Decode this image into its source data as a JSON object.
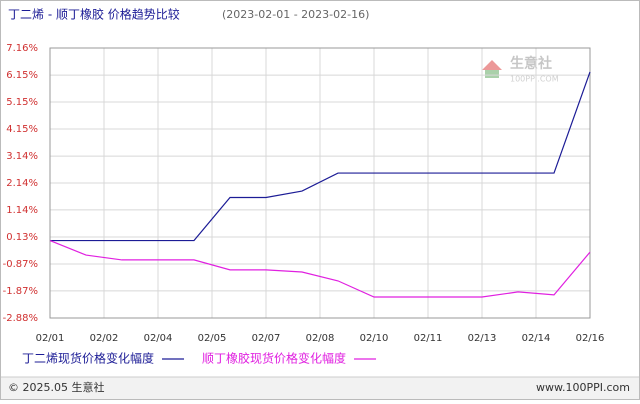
{
  "chart_data": {
    "type": "line",
    "title": "丁二烯 - 顺丁橡胶 价格趋势比较",
    "subtitle": "(2023-02-01 - 2023-02-16)",
    "x_labels": [
      "02/01",
      "02/02",
      "02/04",
      "02/05",
      "02/07",
      "02/08",
      "02/10",
      "02/11",
      "02/13",
      "02/14",
      "02/16"
    ],
    "series": [
      {
        "name": "丁二烯现货价格变化幅度",
        "color": "#1c1c96",
        "values": [
          0,
          0,
          0,
          0,
          0,
          1.6,
          1.6,
          1.84,
          2.51,
          2.51,
          2.51,
          2.51,
          2.51,
          2.51,
          2.51,
          6.27
        ]
      },
      {
        "name": "顺丁橡胶现货价格变化幅度",
        "color": "#e020e0",
        "values": [
          0,
          -0.54,
          -0.72,
          -0.72,
          -0.72,
          -1.09,
          -1.09,
          -1.17,
          -1.5,
          -2.1,
          -2.1,
          -2.1,
          -2.1,
          -1.91,
          -2.02,
          -0.43
        ]
      }
    ],
    "ylim": [
      -2.88,
      7.16
    ],
    "yticks": [
      {
        "value": 7.16,
        "label": "7.16%"
      },
      {
        "value": 6.15,
        "label": "6.15%"
      },
      {
        "value": 5.15,
        "label": "5.15%"
      },
      {
        "value": 4.15,
        "label": "4.15%"
      },
      {
        "value": 3.14,
        "label": "3.14%"
      },
      {
        "value": 2.14,
        "label": "2.14%"
      },
      {
        "value": 1.14,
        "label": "1.14%"
      },
      {
        "value": 0.13,
        "label": "0.13%"
      },
      {
        "value": -0.87,
        "label": "-0.87%"
      },
      {
        "value": -1.87,
        "label": "-1.87%"
      },
      {
        "value": -2.88,
        "label": "-2.88%"
      }
    ],
    "grid": true,
    "watermark": {
      "name": "生意社",
      "site": "100PPI.COM"
    },
    "footer": {
      "left": "© 2025.05 生意社",
      "right": "www.100PPI.com"
    }
  }
}
